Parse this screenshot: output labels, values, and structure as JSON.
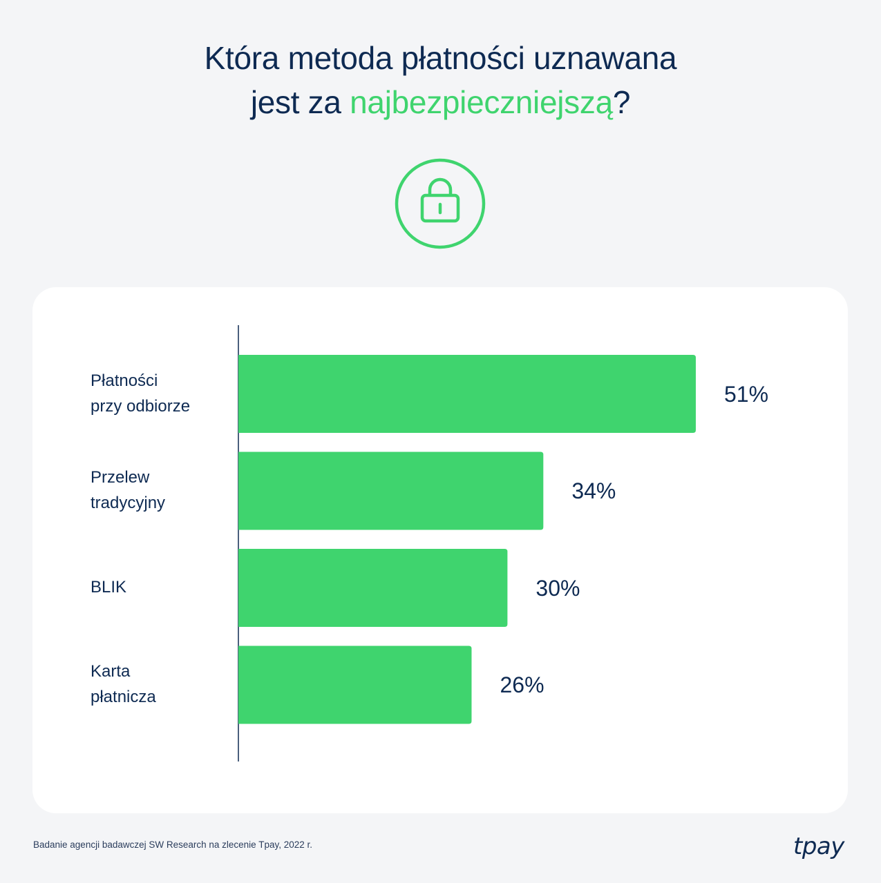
{
  "header": {
    "title_line1": "Która metoda płatności uznawana",
    "title_line2_prefix": "jest za ",
    "title_line2_highlight": "najbezpieczniejszą",
    "title_line2_suffix": "?",
    "icon": "lock-icon"
  },
  "colors": {
    "accent": "#3fd46e",
    "text": "#0e2a52",
    "background": "#f4f5f7",
    "card": "#ffffff"
  },
  "chart_data": {
    "type": "bar",
    "orientation": "horizontal",
    "title": "Która metoda płatności uznawana jest za najbezpieczniejszą?",
    "categories": [
      "Płatności\nprzy odbiorze",
      "Przelew\ntradycyjny",
      "BLIK",
      "Karta\npłatnicza"
    ],
    "values": [
      51,
      34,
      30,
      26
    ],
    "value_labels": [
      "51%",
      "34%",
      "30%",
      "26%"
    ],
    "unit": "%",
    "xlim": [
      0,
      100
    ],
    "grid": false,
    "legend": "none"
  },
  "footer": {
    "source": "Badanie agencji badawczej SW Research na zlecenie Tpay, 2022 r.",
    "logo_text": "tpay"
  }
}
